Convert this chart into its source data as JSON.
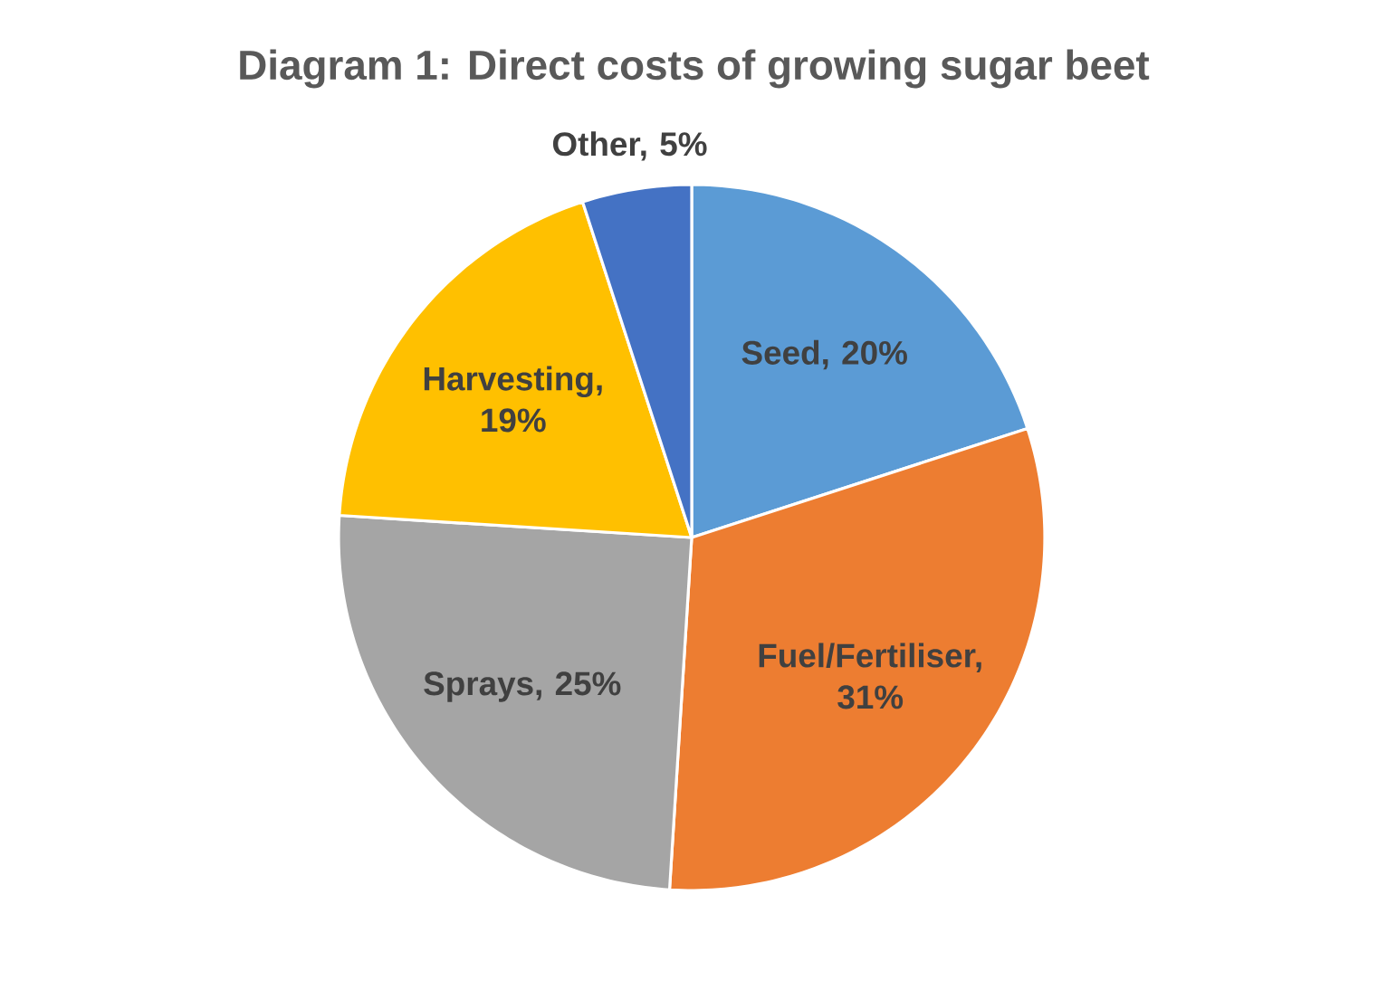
{
  "chart_data": {
    "type": "pie",
    "title": "Diagram 1: Direct costs of growing sugar beet",
    "categories": [
      null,
      null,
      null,
      null,
      null
    ],
    "values": [
      20,
      31,
      25,
      19,
      5
    ],
    "value_labels": [
      "Seed, 20%",
      "Fuel/Fertiliser, 31%",
      "Sprays, 25%",
      "Harvesting, 19%",
      "Other, 5%"
    ],
    "colors": [
      "#5b9bd5",
      "#ed7d31",
      "#a5a5a5",
      "#ffc000",
      "#4472c4"
    ]
  }
}
